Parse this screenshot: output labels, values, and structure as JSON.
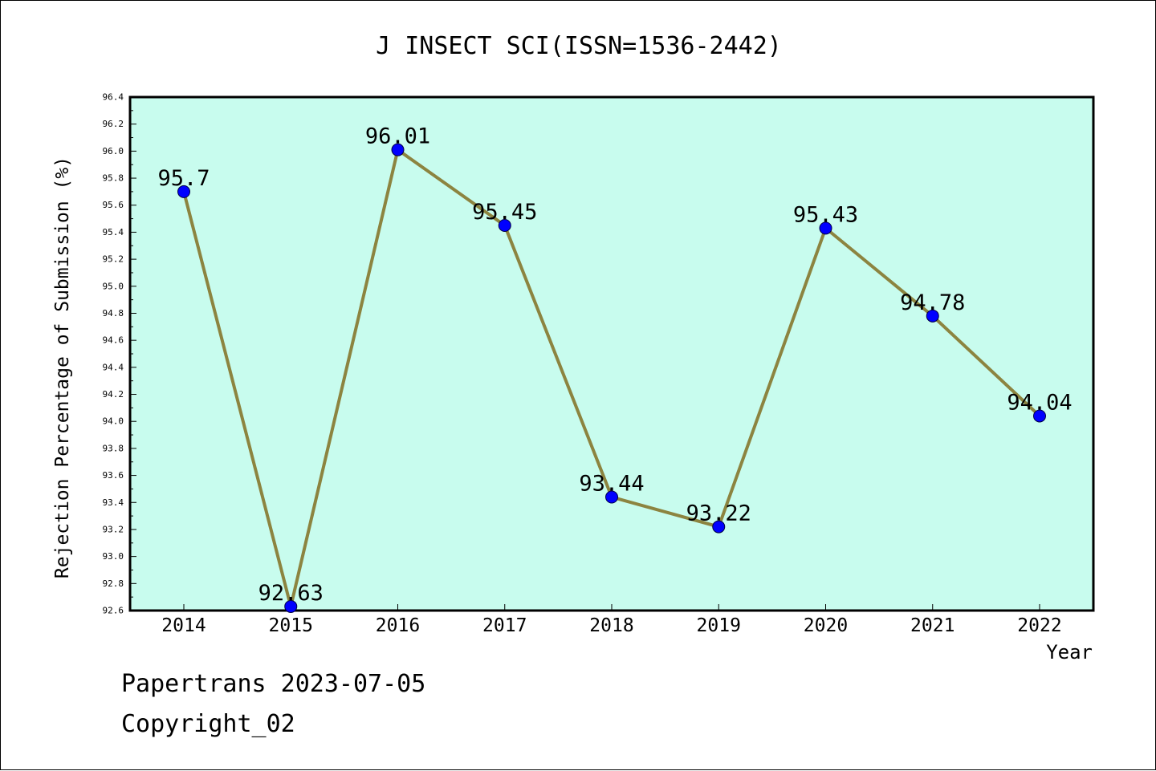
{
  "chart_data": {
    "type": "line",
    "title": "J INSECT SCI(ISSN=1536-2442)",
    "xlabel": "Year",
    "ylabel": "Rejection Percentage of Submission (%)",
    "categories": [
      "2014",
      "2015",
      "2016",
      "2017",
      "2018",
      "2019",
      "2020",
      "2021",
      "2022"
    ],
    "series": [
      {
        "values": [
          95.7,
          92.63,
          96.01,
          95.45,
          93.44,
          93.22,
          95.43,
          94.78,
          94.04
        ]
      }
    ],
    "data_labels": [
      "95.7",
      "92.63",
      "96.01",
      "95.45",
      "93.44",
      "93.22",
      "95.43",
      "94.78",
      "94.04"
    ],
    "ylim": [
      92.6,
      96.4
    ],
    "yticks": [
      "92.6",
      "92.8",
      "93.0",
      "93.2",
      "93.4",
      "93.6",
      "93.8",
      "94.0",
      "94.2",
      "94.4",
      "94.6",
      "94.8",
      "95.0",
      "95.2",
      "95.4",
      "95.6",
      "95.8",
      "96.0",
      "96.2",
      "96.4"
    ],
    "grid": false,
    "legend": "none",
    "colors": {
      "plot_background": "#c8fcee",
      "line": "#8c8440",
      "marker": "#0000ff"
    }
  },
  "footer": {
    "line1": "Papertrans 2023-07-05",
    "line2": "Copyright_02"
  }
}
